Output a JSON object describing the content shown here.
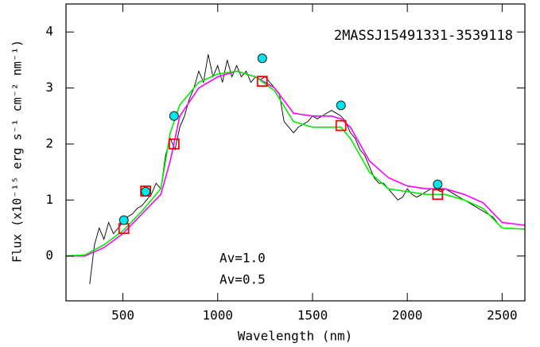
{
  "chart_data": {
    "type": "line",
    "title": "2MASSJ15491331-3539118",
    "xlabel": "Wavelength (nm)",
    "ylabel": "Flux (x10⁻¹⁵ erg s⁻¹ cm⁻² nm⁻¹)",
    "xlim": [
      200,
      2620
    ],
    "ylim": [
      -0.8,
      4.5
    ],
    "xticks": [
      500,
      1000,
      1500,
      2000,
      2500
    ],
    "yticks": [
      0,
      1,
      2,
      3,
      4
    ],
    "series": [
      {
        "mode": "line",
        "color": "#000000",
        "x": [
          325,
          350,
          375,
          400,
          425,
          450,
          475,
          500,
          525,
          550,
          575,
          600,
          625,
          650,
          675,
          700,
          725,
          750,
          775,
          800,
          825,
          850,
          875,
          900,
          925,
          950,
          975,
          1000,
          1025,
          1050,
          1075,
          1100,
          1125,
          1150,
          1175,
          1200,
          1225,
          1250,
          1275,
          1300,
          1325,
          1350,
          1375,
          1400,
          1425,
          1450,
          1475,
          1500,
          1525,
          1550,
          1575,
          1600,
          1625,
          1650,
          1675,
          1700,
          1725,
          1750,
          1775,
          1800,
          1825,
          1850,
          1875,
          1900,
          1925,
          1950,
          1975,
          2000,
          2025,
          2050,
          2075,
          2100,
          2125,
          2150,
          2175,
          2200,
          2225,
          2250,
          2275,
          2300,
          2325,
          2350,
          2375,
          2400,
          2425,
          2450,
          2475
        ],
        "values": [
          -0.5,
          0.2,
          0.5,
          0.3,
          0.6,
          0.4,
          0.5,
          0.6,
          0.7,
          0.75,
          0.85,
          0.9,
          1.0,
          1.1,
          1.3,
          1.2,
          1.8,
          2.1,
          1.9,
          2.3,
          2.5,
          2.8,
          3.0,
          3.3,
          3.1,
          3.6,
          3.2,
          3.4,
          3.1,
          3.5,
          3.2,
          3.4,
          3.2,
          3.3,
          3.1,
          3.2,
          3.15,
          3.2,
          3.1,
          3.0,
          2.9,
          2.4,
          2.3,
          2.2,
          2.3,
          2.35,
          2.4,
          2.5,
          2.45,
          2.5,
          2.55,
          2.6,
          2.55,
          2.5,
          2.4,
          2.2,
          2.1,
          1.9,
          1.8,
          1.6,
          1.4,
          1.3,
          1.3,
          1.2,
          1.1,
          1.0,
          1.05,
          1.2,
          1.1,
          1.05,
          1.1,
          1.15,
          1.2,
          1.2,
          1.15,
          1.2,
          1.15,
          1.1,
          1.05,
          1.0,
          0.95,
          0.9,
          0.85,
          0.8,
          0.75,
          0.7,
          0.6
        ]
      },
      {
        "mode": "line",
        "name": "Av=1.0",
        "color": "#ff00ff",
        "x": [
          200,
          300,
          400,
          500,
          600,
          700,
          750,
          800,
          900,
          1000,
          1100,
          1200,
          1300,
          1400,
          1500,
          1600,
          1650,
          1700,
          1800,
          1900,
          2000,
          2100,
          2200,
          2300,
          2400,
          2500,
          2620
        ],
        "values": [
          0,
          0,
          0.15,
          0.4,
          0.75,
          1.1,
          1.7,
          2.5,
          3.0,
          3.2,
          3.3,
          3.2,
          3.0,
          2.55,
          2.5,
          2.5,
          2.45,
          2.3,
          1.7,
          1.4,
          1.25,
          1.2,
          1.2,
          1.1,
          0.95,
          0.6,
          0.55
        ]
      },
      {
        "mode": "line",
        "name": "Av=0.5",
        "color": "#00ee00",
        "x": [
          200,
          300,
          400,
          500,
          600,
          700,
          750,
          800,
          900,
          1000,
          1100,
          1200,
          1300,
          1400,
          1500,
          1600,
          1650,
          1700,
          1800,
          1900,
          2000,
          2100,
          2200,
          2300,
          2400,
          2500,
          2620
        ],
        "values": [
          0,
          0.02,
          0.2,
          0.45,
          0.8,
          1.2,
          2.2,
          2.7,
          3.1,
          3.25,
          3.3,
          3.2,
          2.95,
          2.4,
          2.3,
          2.3,
          2.3,
          2.1,
          1.5,
          1.2,
          1.15,
          1.1,
          1.1,
          1.0,
          0.85,
          0.5,
          0.48
        ]
      },
      {
        "mode": "square",
        "color": "#ff0000",
        "x": [
          505,
          620,
          770,
          1235,
          1650,
          2160
        ],
        "values": [
          0.49,
          1.16,
          2.0,
          3.12,
          2.33,
          1.1
        ]
      },
      {
        "mode": "circle",
        "color": "#00e5ee",
        "x": [
          505,
          620,
          770,
          1235,
          1650,
          2160
        ],
        "values": [
          0.64,
          1.15,
          2.5,
          3.53,
          2.69,
          1.28
        ]
      }
    ]
  }
}
